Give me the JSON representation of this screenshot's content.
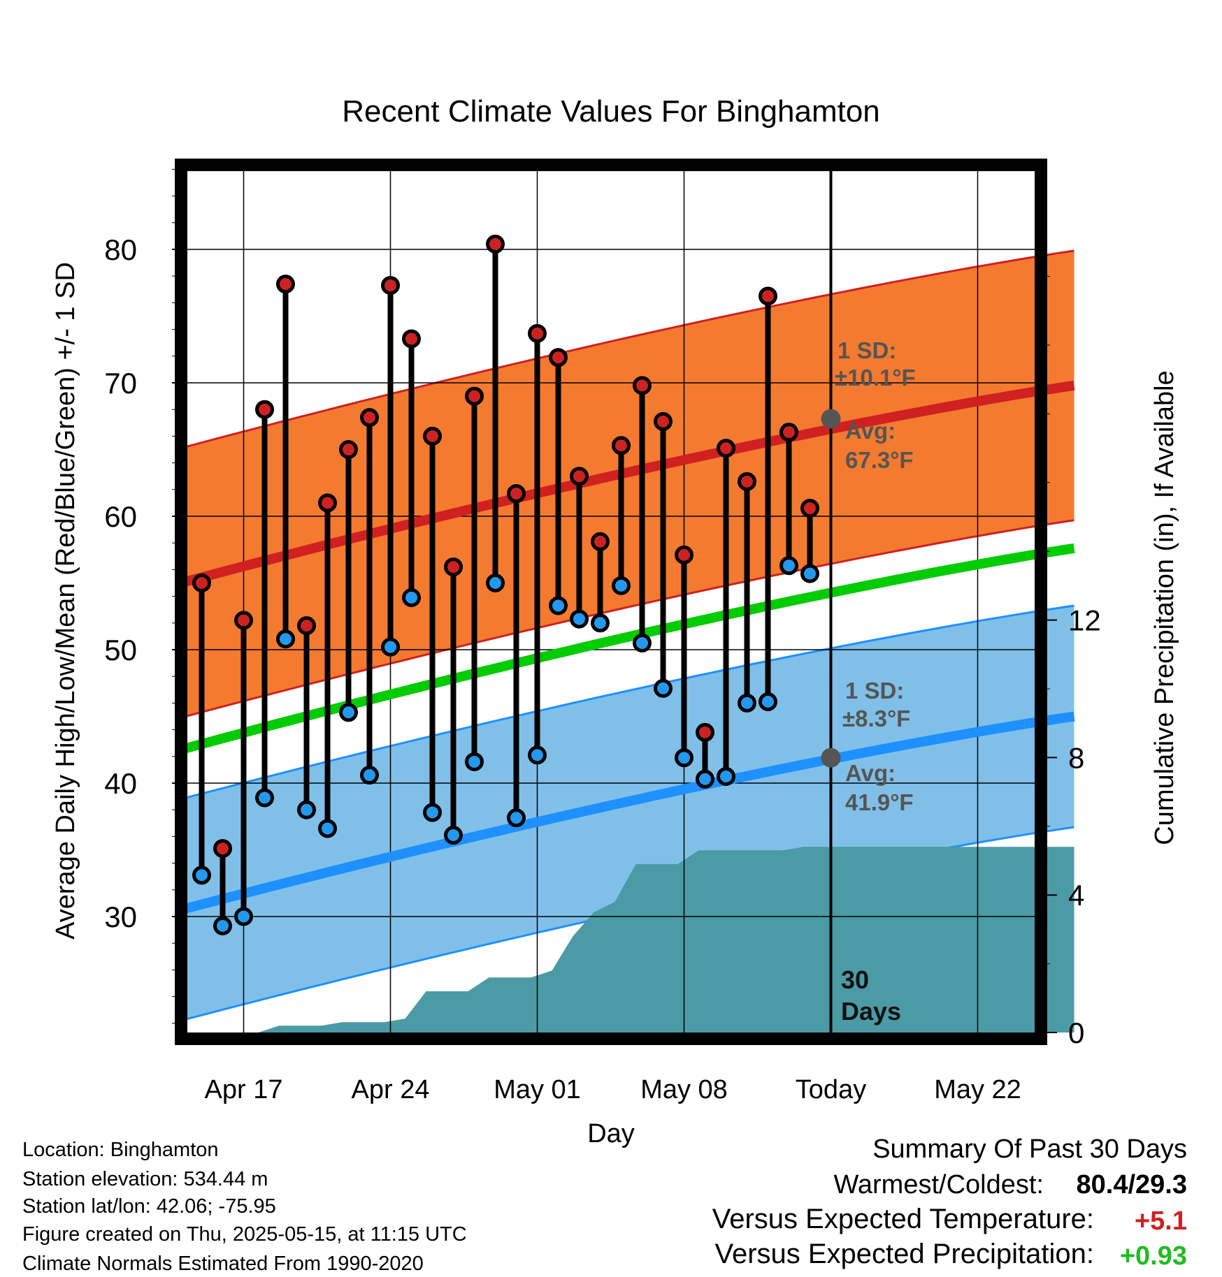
{
  "chart_data": {
    "type": "line",
    "title": "Recent Climate Values For Binghamton",
    "xlabel": "Day",
    "ylabel": "Average Daily High/Low/Mean (Red/Blue/Green) +/- 1 SD",
    "y2label": "Cumulative Precipitation (in), If Available",
    "xlim": [
      "2025-04-14",
      "2025-05-27"
    ],
    "ylim": [
      20,
      86
    ],
    "y2lim": [
      0,
      23.5
    ],
    "y_ticks": [
      30,
      40,
      50,
      60,
      70,
      80
    ],
    "y2_ticks": [
      0,
      4,
      8,
      12
    ],
    "x_ticks": [
      {
        "date": "2025-04-17",
        "label": "Apr 17"
      },
      {
        "date": "2025-04-24",
        "label": "Apr 24"
      },
      {
        "date": "2025-05-01",
        "label": "May 01"
      },
      {
        "date": "2025-05-08",
        "label": "May 08"
      },
      {
        "date": "2025-05-15",
        "label": "Today"
      },
      {
        "date": "2025-05-22",
        "label": "May 22"
      }
    ],
    "grid": true,
    "today": "2025-05-15",
    "days": [
      "2025-04-15",
      "2025-04-16",
      "2025-04-17",
      "2025-04-18",
      "2025-04-19",
      "2025-04-20",
      "2025-04-21",
      "2025-04-22",
      "2025-04-23",
      "2025-04-24",
      "2025-04-25",
      "2025-04-26",
      "2025-04-27",
      "2025-04-28",
      "2025-04-29",
      "2025-04-30",
      "2025-05-01",
      "2025-05-02",
      "2025-05-03",
      "2025-05-04",
      "2025-05-05",
      "2025-05-06",
      "2025-05-07",
      "2025-05-08",
      "2025-05-09",
      "2025-05-10",
      "2025-05-11",
      "2025-05-12",
      "2025-05-13",
      "2025-05-14"
    ],
    "highs": [
      55.0,
      35.1,
      52.2,
      68.0,
      77.4,
      51.8,
      61.0,
      65.0,
      67.4,
      77.3,
      73.3,
      66.0,
      56.2,
      69.0,
      80.4,
      61.7,
      73.7,
      71.9,
      63.0,
      58.1,
      65.3,
      69.8,
      67.1,
      57.1,
      43.8,
      65.1,
      62.6,
      76.5,
      66.3,
      60.6
    ],
    "lows": [
      33.1,
      29.3,
      30.0,
      38.9,
      50.8,
      38.0,
      36.6,
      45.3,
      40.6,
      50.2,
      53.9,
      37.8,
      36.1,
      41.6,
      55.0,
      37.4,
      42.1,
      53.3,
      52.3,
      52.0,
      54.8,
      50.5,
      47.1,
      41.9,
      40.3,
      40.5,
      46.0,
      46.1,
      56.3,
      55.7
    ],
    "normal_high": {
      "start": 55.0,
      "end": 69.8,
      "sd": 10.1
    },
    "normal_mean": {
      "start": 42.5,
      "end": 57.6
    },
    "normal_low": {
      "start": 30.5,
      "end": 45.0,
      "sd": 8.3
    },
    "precip_cumulative": [
      0.0,
      0.0,
      0.0,
      0.0,
      0.2,
      0.2,
      0.2,
      0.3,
      0.3,
      0.3,
      0.4,
      1.2,
      1.2,
      1.2,
      1.6,
      1.6,
      1.6,
      1.8,
      2.8,
      3.5,
      3.8,
      4.9,
      4.9,
      4.9,
      5.3,
      5.3,
      5.3,
      5.3,
      5.3,
      5.4,
      5.4
    ],
    "annotations": {
      "high_sd_title": "1 SD:",
      "high_sd_value": "±10.1°F",
      "high_avg_title": "Avg:",
      "high_avg_value": "67.3°F",
      "low_sd_title": "1 SD:",
      "low_sd_value": "±8.3°F",
      "low_avg_title": "Avg:",
      "low_avg_value": "41.9°F",
      "high_avg_marker": 67.3,
      "low_avg_marker": 41.9,
      "days_count": "30",
      "days_word": "Days"
    },
    "colors": {
      "high_band": "#F47A30",
      "high_line": "#D02020",
      "mean_line": "#00CC00",
      "low_band": "#80C0E8",
      "low_line": "#1E90FF",
      "precip": "#4A9BA5",
      "high_dot": "#CC2222",
      "low_dot": "#2299EE",
      "annotation": "#555555",
      "positive_temp": "#D02020",
      "positive_precip": "#22BB22"
    }
  },
  "info": {
    "location": "Location: Binghamton",
    "elevation": "Station elevation: 534.44 m",
    "latlon": "Station lat/lon: 42.06; -75.95",
    "created": "Figure created on Thu, 2025-05-15, at 11:15 UTC",
    "normals": "Climate Normals Estimated From 1990-2020"
  },
  "summary": {
    "title": "Summary Of Past 30 Days",
    "warm_cold_label": "Warmest/Coldest:",
    "warm_cold_value": "80.4/29.3",
    "temp_label": "Versus Expected Temperature:",
    "temp_value": "+5.1",
    "precip_label": "Versus Expected Precipitation:",
    "precip_value": "+0.93"
  }
}
